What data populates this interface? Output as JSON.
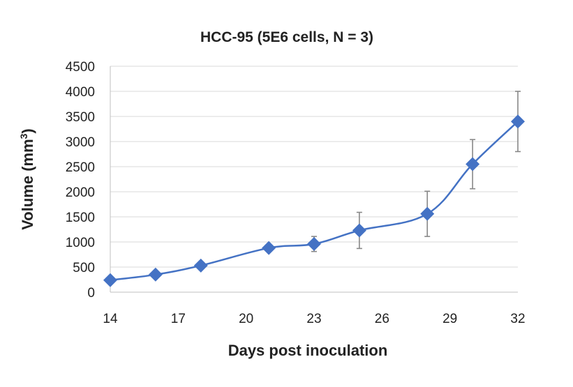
{
  "chart_data": {
    "type": "line",
    "title": "HCC-95 (5E6 cells, N = 3)",
    "xlabel": "Days post inoculation",
    "ylabel": "Volume (mm³)",
    "ylabel_parts": {
      "before": "Volume (mm",
      "sup": "3",
      "after": ")"
    },
    "xlim": [
      14,
      32
    ],
    "ylim": [
      0,
      4500
    ],
    "y_ticks": [
      0,
      500,
      1000,
      1500,
      2000,
      2500,
      3000,
      3500,
      4000,
      4500
    ],
    "x_ticks": [
      14,
      17,
      20,
      23,
      26,
      29,
      32
    ],
    "grid": "horizontal",
    "series_color": "#4472C4",
    "marker": "diamond",
    "series": [
      {
        "x": [
          14,
          16,
          18,
          21,
          23,
          25,
          28,
          30,
          32
        ],
        "values": [
          240,
          350,
          530,
          880,
          960,
          1230,
          1560,
          2550,
          3400
        ],
        "error": [
          0,
          0,
          0,
          0,
          150,
          360,
          450,
          490,
          600
        ]
      }
    ]
  }
}
